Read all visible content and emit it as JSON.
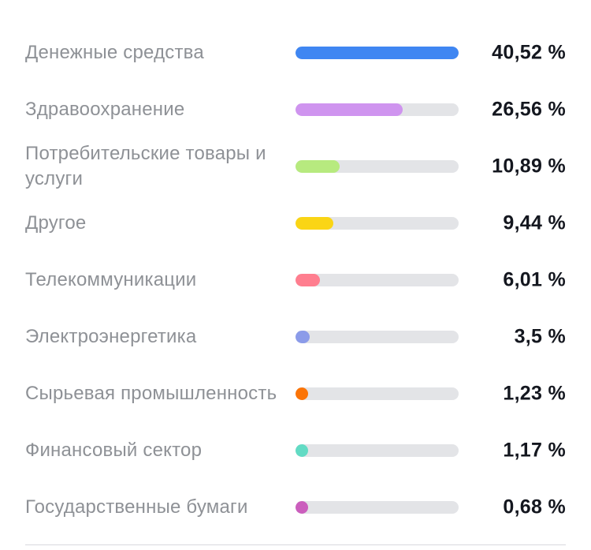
{
  "chart_data": {
    "type": "bar",
    "categories": [
      "Денежные средства",
      "Здравоохранение",
      "Потребительские товары и услуги",
      "Другое",
      "Телекоммуникации",
      "Электроэнергетика",
      "Сырьевая промышленность",
      "Финансовый сектор",
      "Государственные бумаги"
    ],
    "values": [
      40.52,
      26.56,
      10.89,
      9.44,
      6.01,
      3.5,
      1.23,
      1.17,
      0.68
    ],
    "value_labels": [
      "40,52 %",
      "26,56 %",
      "10,89 %",
      "9,44 %",
      "6,01 %",
      "3,5 %",
      "1,23 %",
      "1,17 %",
      "0,68 %"
    ],
    "colors": [
      "#3f86f2",
      "#cf94ef",
      "#b7ea7f",
      "#fad515",
      "#ff7e8f",
      "#8b9be9",
      "#fb7407",
      "#62dbc4",
      "#cb5ebd"
    ],
    "track_color": "#e3e4e7",
    "orientation": "horizontal",
    "xlim": [
      0,
      40.52
    ]
  }
}
